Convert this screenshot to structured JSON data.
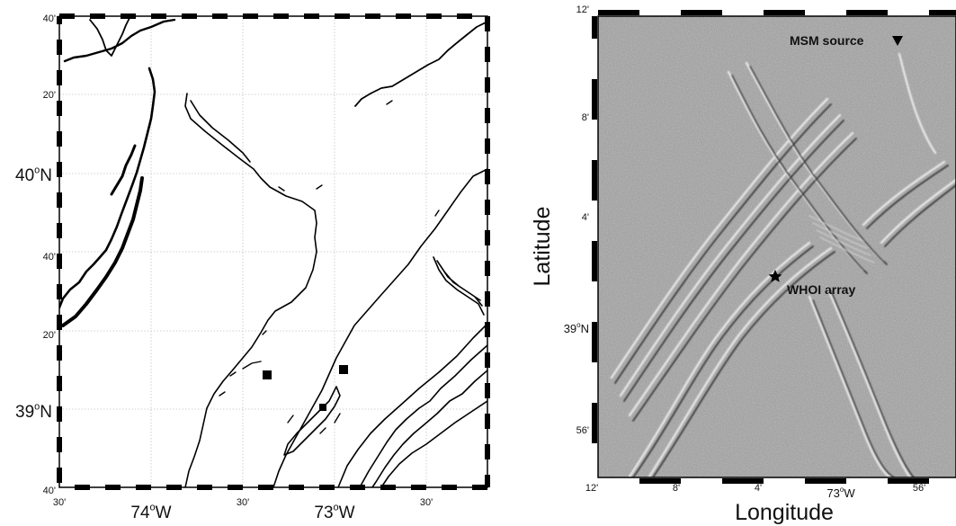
{
  "left_map": {
    "lat_labels": [
      {
        "text": "40'",
        "size": "small"
      },
      {
        "text": "20'",
        "size": "small"
      },
      {
        "text": "40°N",
        "size": "big",
        "main": "40",
        "sup": "o",
        "tail": "N"
      },
      {
        "text": "40'",
        "size": "small"
      },
      {
        "text": "20'",
        "size": "small"
      },
      {
        "text": "39°N",
        "size": "big",
        "main": "39",
        "sup": "o",
        "tail": "N"
      },
      {
        "text": "40'",
        "size": "small"
      }
    ],
    "lon_labels": [
      {
        "text": "30'",
        "size": "small"
      },
      {
        "text": "74°W",
        "size": "big",
        "main": "74",
        "sup": "o",
        "tail": "W"
      },
      {
        "text": "30'",
        "size": "small"
      },
      {
        "text": "73°W",
        "size": "big",
        "main": "73",
        "sup": "o",
        "tail": "W"
      },
      {
        "text": "30'",
        "size": "small"
      }
    ],
    "markers": [
      {
        "name": "square-marker"
      },
      {
        "name": "square-marker"
      },
      {
        "name": "square-marker"
      }
    ]
  },
  "right_map": {
    "ylabel": "Latitude",
    "xlabel": "Longitude",
    "lat_labels": [
      {
        "text": "12'",
        "size": "small"
      },
      {
        "text": "8'",
        "size": "small"
      },
      {
        "text": "4'",
        "size": "small"
      },
      {
        "text": "39°N",
        "size": "mid",
        "main": "39",
        "sup": "o",
        "tail": "N"
      },
      {
        "text": "56'",
        "size": "small"
      }
    ],
    "lon_labels": [
      {
        "text": "12'",
        "size": "small"
      },
      {
        "text": "8'",
        "size": "small"
      },
      {
        "text": "4'",
        "size": "small"
      },
      {
        "text": "73°W",
        "size": "mid",
        "main": "73",
        "sup": "o",
        "tail": "W"
      },
      {
        "text": "56'",
        "size": "small"
      }
    ],
    "annotations": {
      "source_label": "MSM source",
      "array_label": "WHOI array"
    }
  },
  "colors": {
    "frame": "#000000",
    "grid": "#bdbdbd",
    "sar_background": "#9a9a9a"
  }
}
